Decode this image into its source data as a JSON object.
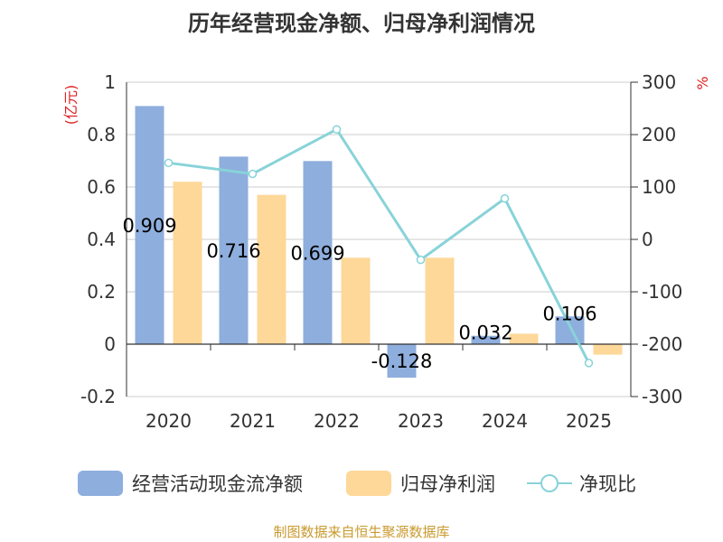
{
  "chart_data": {
    "type": "bar",
    "title": "历年经营现金净额、归母净利润情况",
    "categories": [
      "2020",
      "2021",
      "2022",
      "2023",
      "2024",
      "2025"
    ],
    "series": [
      {
        "name": "经营活动现金流净额",
        "kind": "bar",
        "axis": "left",
        "color": "#8eaedd",
        "values": [
          0.909,
          0.716,
          0.699,
          -0.128,
          0.032,
          0.106
        ],
        "labels": [
          "0.909",
          "0.716",
          "0.699",
          "-0.128",
          "0.032",
          "0.106"
        ]
      },
      {
        "name": "归母净利润",
        "kind": "bar",
        "axis": "left",
        "color": "#fdd899",
        "values": [
          0.62,
          0.57,
          0.33,
          0.33,
          0.04,
          -0.04
        ]
      },
      {
        "name": "净现比",
        "kind": "line",
        "axis": "right",
        "color": "#88d3d9",
        "values": [
          146,
          125,
          210,
          -39,
          78,
          -236
        ]
      }
    ],
    "y_left": {
      "unit": "(亿元)",
      "min": -0.2,
      "max": 1,
      "ticks": [
        "1",
        "0.8",
        "0.6",
        "0.4",
        "0.2",
        "0",
        "-0.2"
      ]
    },
    "y_right": {
      "unit": "%",
      "min": -300,
      "max": 300,
      "ticks": [
        "300",
        "200",
        "100",
        "0",
        "-100",
        "-200",
        "-300"
      ]
    },
    "grid": true,
    "legend_position": "bottom"
  },
  "colors": {
    "unit_red": "#dd2222",
    "source_gold": "#c99a2e",
    "axis": "#333333",
    "grid": "#cccccc"
  },
  "source": "制图数据来自恒生聚源数据库"
}
